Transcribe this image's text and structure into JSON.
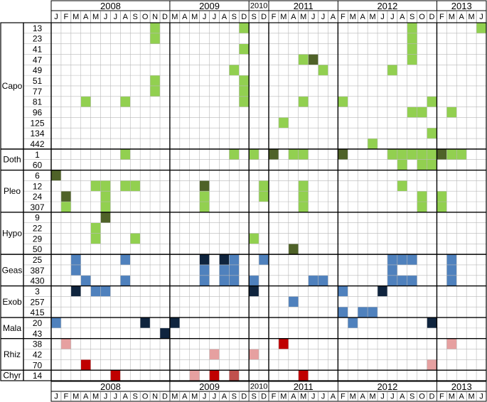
{
  "chart_data": {
    "type": "heatmap",
    "years": [
      {
        "label": "2008",
        "months": [
          "J",
          "F",
          "M",
          "A",
          "M",
          "J",
          "J",
          "A",
          "S",
          "O",
          "N",
          "D"
        ]
      },
      {
        "label": "2009",
        "months": [
          "M",
          "A",
          "M",
          "J",
          "J",
          "A",
          "S",
          "D"
        ]
      },
      {
        "label": "2010",
        "months": [
          "S",
          "D"
        ]
      },
      {
        "label": "2011",
        "months": [
          "F",
          "M",
          "A",
          "M",
          "J",
          "J",
          "A"
        ]
      },
      {
        "label": "2012",
        "months": [
          "F",
          "M",
          "A",
          "M",
          "J",
          "J",
          "A",
          "S",
          "O",
          "D"
        ]
      },
      {
        "label": "2013",
        "months": [
          "F",
          "M",
          "A",
          "M",
          "J"
        ]
      }
    ],
    "groups": [
      {
        "name": "Capo",
        "rows": [
          "13",
          "23",
          "41",
          "47",
          "49",
          "51",
          "77",
          "81",
          "96",
          "125",
          "134",
          "442"
        ]
      },
      {
        "name": "Doth",
        "rows": [
          "1",
          "60"
        ]
      },
      {
        "name": "Pleo",
        "rows": [
          "6",
          "12",
          "24",
          "307"
        ]
      },
      {
        "name": "Hypo",
        "rows": [
          "9",
          "22",
          "29",
          "50"
        ]
      },
      {
        "name": "Geas",
        "rows": [
          "25",
          "387",
          "430"
        ]
      },
      {
        "name": "Exob",
        "rows": [
          "3",
          "257",
          "415"
        ]
      },
      {
        "name": "Mala",
        "rows": [
          "20",
          "43"
        ]
      },
      {
        "name": "Rhiz",
        "rows": [
          "38",
          "42",
          "70"
        ]
      },
      {
        "name": "Chyr",
        "rows": [
          "14"
        ]
      }
    ],
    "colors": {
      "lg": "#92d050",
      "dg": "#4f6228",
      "lb": "#4f81bd",
      "db": "#0f243e",
      "lr": "#e6a0a0",
      "dr": "#c00000",
      "mr": "#c0504d"
    },
    "cells": [
      {
        "group": "Capo",
        "row": "13",
        "col": 10,
        "color": "lg"
      },
      {
        "group": "Capo",
        "row": "13",
        "col": 19,
        "color": "lg"
      },
      {
        "group": "Capo",
        "row": "13",
        "col": 36,
        "color": "lg"
      },
      {
        "group": "Capo",
        "row": "13",
        "col": 43,
        "color": "lg"
      },
      {
        "group": "Capo",
        "row": "23",
        "col": 10,
        "color": "lg"
      },
      {
        "group": "Capo",
        "row": "23",
        "col": 36,
        "color": "lg"
      },
      {
        "group": "Capo",
        "row": "41",
        "col": 19,
        "color": "lg"
      },
      {
        "group": "Capo",
        "row": "41",
        "col": 36,
        "color": "lg"
      },
      {
        "group": "Capo",
        "row": "47",
        "col": 25,
        "color": "lg"
      },
      {
        "group": "Capo",
        "row": "47",
        "col": 26,
        "color": "dg"
      },
      {
        "group": "Capo",
        "row": "47",
        "col": 36,
        "color": "lg"
      },
      {
        "group": "Capo",
        "row": "49",
        "col": 18,
        "color": "lg"
      },
      {
        "group": "Capo",
        "row": "49",
        "col": 27,
        "color": "lg"
      },
      {
        "group": "Capo",
        "row": "49",
        "col": 34,
        "color": "lg"
      },
      {
        "group": "Capo",
        "row": "51",
        "col": 10,
        "color": "lg"
      },
      {
        "group": "Capo",
        "row": "51",
        "col": 19,
        "color": "lg"
      },
      {
        "group": "Capo",
        "row": "77",
        "col": 10,
        "color": "lg"
      },
      {
        "group": "Capo",
        "row": "77",
        "col": 19,
        "color": "lg"
      },
      {
        "group": "Capo",
        "row": "81",
        "col": 3,
        "color": "lg"
      },
      {
        "group": "Capo",
        "row": "81",
        "col": 7,
        "color": "lg"
      },
      {
        "group": "Capo",
        "row": "81",
        "col": 19,
        "color": "lg"
      },
      {
        "group": "Capo",
        "row": "81",
        "col": 25,
        "color": "lg"
      },
      {
        "group": "Capo",
        "row": "81",
        "col": 29,
        "color": "lg"
      },
      {
        "group": "Capo",
        "row": "81",
        "col": 38,
        "color": "lg"
      },
      {
        "group": "Capo",
        "row": "96",
        "col": 36,
        "color": "lg"
      },
      {
        "group": "Capo",
        "row": "96",
        "col": 37,
        "color": "lg"
      },
      {
        "group": "Capo",
        "row": "96",
        "col": 40,
        "color": "lg"
      },
      {
        "group": "Capo",
        "row": "125",
        "col": 23,
        "color": "lg"
      },
      {
        "group": "Capo",
        "row": "134",
        "col": 38,
        "color": "lg"
      },
      {
        "group": "Capo",
        "row": "442",
        "col": 32,
        "color": "lg"
      },
      {
        "group": "Doth",
        "row": "1",
        "col": 7,
        "color": "lg"
      },
      {
        "group": "Doth",
        "row": "1",
        "col": 18,
        "color": "lg"
      },
      {
        "group": "Doth",
        "row": "1",
        "col": 20,
        "color": "lg"
      },
      {
        "group": "Doth",
        "row": "1",
        "col": 22,
        "color": "dg"
      },
      {
        "group": "Doth",
        "row": "1",
        "col": 24,
        "color": "lg"
      },
      {
        "group": "Doth",
        "row": "1",
        "col": 25,
        "color": "lg"
      },
      {
        "group": "Doth",
        "row": "1",
        "col": 29,
        "color": "dg"
      },
      {
        "group": "Doth",
        "row": "1",
        "col": 34,
        "color": "lg"
      },
      {
        "group": "Doth",
        "row": "1",
        "col": 35,
        "color": "lg"
      },
      {
        "group": "Doth",
        "row": "1",
        "col": 36,
        "color": "lg"
      },
      {
        "group": "Doth",
        "row": "1",
        "col": 37,
        "color": "lg"
      },
      {
        "group": "Doth",
        "row": "1",
        "col": 38,
        "color": "lg"
      },
      {
        "group": "Doth",
        "row": "1",
        "col": 39,
        "color": "dg"
      },
      {
        "group": "Doth",
        "row": "1",
        "col": 40,
        "color": "lg"
      },
      {
        "group": "Doth",
        "row": "1",
        "col": 41,
        "color": "lg"
      },
      {
        "group": "Doth",
        "row": "60",
        "col": 35,
        "color": "lg"
      },
      {
        "group": "Doth",
        "row": "60",
        "col": 37,
        "color": "lg"
      },
      {
        "group": "Doth",
        "row": "60",
        "col": 38,
        "color": "lg"
      },
      {
        "group": "Pleo",
        "row": "6",
        "col": 0,
        "color": "dg"
      },
      {
        "group": "Pleo",
        "row": "12",
        "col": 4,
        "color": "lg"
      },
      {
        "group": "Pleo",
        "row": "12",
        "col": 5,
        "color": "lg"
      },
      {
        "group": "Pleo",
        "row": "12",
        "col": 7,
        "color": "lg"
      },
      {
        "group": "Pleo",
        "row": "12",
        "col": 8,
        "color": "lg"
      },
      {
        "group": "Pleo",
        "row": "12",
        "col": 15,
        "color": "dg"
      },
      {
        "group": "Pleo",
        "row": "12",
        "col": 21,
        "color": "lg"
      },
      {
        "group": "Pleo",
        "row": "12",
        "col": 25,
        "color": "lg"
      },
      {
        "group": "Pleo",
        "row": "12",
        "col": 35,
        "color": "lg"
      },
      {
        "group": "Pleo",
        "row": "24",
        "col": 1,
        "color": "dg"
      },
      {
        "group": "Pleo",
        "row": "24",
        "col": 5,
        "color": "lg"
      },
      {
        "group": "Pleo",
        "row": "24",
        "col": 15,
        "color": "lg"
      },
      {
        "group": "Pleo",
        "row": "24",
        "col": 21,
        "color": "lg"
      },
      {
        "group": "Pleo",
        "row": "24",
        "col": 25,
        "color": "lg"
      },
      {
        "group": "Pleo",
        "row": "24",
        "col": 37,
        "color": "lg"
      },
      {
        "group": "Pleo",
        "row": "24",
        "col": 39,
        "color": "lg"
      },
      {
        "group": "Pleo",
        "row": "307",
        "col": 1,
        "color": "lg"
      },
      {
        "group": "Pleo",
        "row": "307",
        "col": 5,
        "color": "lg"
      },
      {
        "group": "Pleo",
        "row": "307",
        "col": 15,
        "color": "lg"
      },
      {
        "group": "Pleo",
        "row": "307",
        "col": 25,
        "color": "lg"
      },
      {
        "group": "Pleo",
        "row": "307",
        "col": 37,
        "color": "lg"
      },
      {
        "group": "Pleo",
        "row": "307",
        "col": 39,
        "color": "lg"
      },
      {
        "group": "Hypo",
        "row": "9",
        "col": 5,
        "color": "dg"
      },
      {
        "group": "Hypo",
        "row": "22",
        "col": 4,
        "color": "lg"
      },
      {
        "group": "Hypo",
        "row": "29",
        "col": 4,
        "color": "lg"
      },
      {
        "group": "Hypo",
        "row": "29",
        "col": 8,
        "color": "lg"
      },
      {
        "group": "Hypo",
        "row": "29",
        "col": 20,
        "color": "lg"
      },
      {
        "group": "Hypo",
        "row": "50",
        "col": 24,
        "color": "dg"
      },
      {
        "group": "Geas",
        "row": "25",
        "col": 2,
        "color": "lb"
      },
      {
        "group": "Geas",
        "row": "25",
        "col": 7,
        "color": "lb"
      },
      {
        "group": "Geas",
        "row": "25",
        "col": 15,
        "color": "db"
      },
      {
        "group": "Geas",
        "row": "25",
        "col": 17,
        "color": "db"
      },
      {
        "group": "Geas",
        "row": "25",
        "col": 18,
        "color": "lb"
      },
      {
        "group": "Geas",
        "row": "25",
        "col": 21,
        "color": "lb"
      },
      {
        "group": "Geas",
        "row": "25",
        "col": 34,
        "color": "lb"
      },
      {
        "group": "Geas",
        "row": "25",
        "col": 35,
        "color": "lb"
      },
      {
        "group": "Geas",
        "row": "25",
        "col": 36,
        "color": "lb"
      },
      {
        "group": "Geas",
        "row": "25",
        "col": 40,
        "color": "lb"
      },
      {
        "group": "Geas",
        "row": "387",
        "col": 2,
        "color": "lb"
      },
      {
        "group": "Geas",
        "row": "387",
        "col": 15,
        "color": "lb"
      },
      {
        "group": "Geas",
        "row": "387",
        "col": 17,
        "color": "lb"
      },
      {
        "group": "Geas",
        "row": "387",
        "col": 18,
        "color": "lb"
      },
      {
        "group": "Geas",
        "row": "387",
        "col": 34,
        "color": "lb"
      },
      {
        "group": "Geas",
        "row": "387",
        "col": 40,
        "color": "lb"
      },
      {
        "group": "Geas",
        "row": "430",
        "col": 3,
        "color": "lb"
      },
      {
        "group": "Geas",
        "row": "430",
        "col": 7,
        "color": "lb"
      },
      {
        "group": "Geas",
        "row": "430",
        "col": 15,
        "color": "lb"
      },
      {
        "group": "Geas",
        "row": "430",
        "col": 17,
        "color": "lb"
      },
      {
        "group": "Geas",
        "row": "430",
        "col": 18,
        "color": "lb"
      },
      {
        "group": "Geas",
        "row": "430",
        "col": 20,
        "color": "lb"
      },
      {
        "group": "Geas",
        "row": "430",
        "col": 26,
        "color": "lb"
      },
      {
        "group": "Geas",
        "row": "430",
        "col": 27,
        "color": "lb"
      },
      {
        "group": "Geas",
        "row": "430",
        "col": 34,
        "color": "lb"
      },
      {
        "group": "Geas",
        "row": "430",
        "col": 35,
        "color": "lb"
      },
      {
        "group": "Geas",
        "row": "430",
        "col": 36,
        "color": "lb"
      },
      {
        "group": "Geas",
        "row": "430",
        "col": 40,
        "color": "lb"
      },
      {
        "group": "Exob",
        "row": "3",
        "col": 2,
        "color": "db"
      },
      {
        "group": "Exob",
        "row": "3",
        "col": 4,
        "color": "lb"
      },
      {
        "group": "Exob",
        "row": "3",
        "col": 5,
        "color": "lb"
      },
      {
        "group": "Exob",
        "row": "3",
        "col": 20,
        "color": "db"
      },
      {
        "group": "Exob",
        "row": "3",
        "col": 29,
        "color": "lb"
      },
      {
        "group": "Exob",
        "row": "3",
        "col": 33,
        "color": "db"
      },
      {
        "group": "Exob",
        "row": "257",
        "col": 24,
        "color": "lb"
      },
      {
        "group": "Exob",
        "row": "415",
        "col": 29,
        "color": "lb"
      },
      {
        "group": "Exob",
        "row": "415",
        "col": 31,
        "color": "lb"
      },
      {
        "group": "Exob",
        "row": "415",
        "col": 32,
        "color": "lb"
      },
      {
        "group": "Mala",
        "row": "20",
        "col": 0,
        "color": "lb"
      },
      {
        "group": "Mala",
        "row": "20",
        "col": 9,
        "color": "db"
      },
      {
        "group": "Mala",
        "row": "20",
        "col": 12,
        "color": "db"
      },
      {
        "group": "Mala",
        "row": "20",
        "col": 30,
        "color": "lb"
      },
      {
        "group": "Mala",
        "row": "20",
        "col": 38,
        "color": "db"
      },
      {
        "group": "Mala",
        "row": "43",
        "col": 11,
        "color": "db"
      },
      {
        "group": "Rhiz",
        "row": "38",
        "col": 1,
        "color": "lr"
      },
      {
        "group": "Rhiz",
        "row": "38",
        "col": 23,
        "color": "dr"
      },
      {
        "group": "Rhiz",
        "row": "38",
        "col": 40,
        "color": "lr"
      },
      {
        "group": "Rhiz",
        "row": "42",
        "col": 16,
        "color": "lr"
      },
      {
        "group": "Rhiz",
        "row": "42",
        "col": 20,
        "color": "lr"
      },
      {
        "group": "Rhiz",
        "row": "70",
        "col": 3,
        "color": "dr"
      },
      {
        "group": "Rhiz",
        "row": "70",
        "col": 38,
        "color": "lr"
      },
      {
        "group": "Chyr",
        "row": "14",
        "col": 6,
        "color": "dr"
      },
      {
        "group": "Chyr",
        "row": "14",
        "col": 14,
        "color": "lr"
      },
      {
        "group": "Chyr",
        "row": "14",
        "col": 16,
        "color": "dr"
      },
      {
        "group": "Chyr",
        "row": "14",
        "col": 18,
        "color": "mr"
      },
      {
        "group": "Chyr",
        "row": "14",
        "col": 25,
        "color": "dr"
      }
    ]
  }
}
